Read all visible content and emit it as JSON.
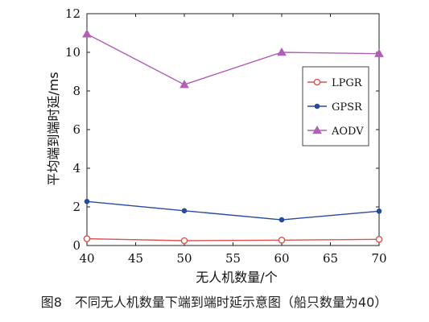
{
  "chart_data": {
    "type": "line",
    "title": "",
    "xlabel": "无人机数量/个",
    "ylabel": "平均端到端时延/ms",
    "x": [
      40,
      50,
      60,
      70
    ],
    "xlim": [
      40,
      70
    ],
    "ylim": [
      0,
      12
    ],
    "xticks": [
      40,
      45,
      50,
      55,
      60,
      65,
      70
    ],
    "yticks": [
      0,
      2,
      4,
      6,
      8,
      10,
      12
    ],
    "grid": false,
    "legend_position": "right",
    "series": [
      {
        "name": "LPGR",
        "values": [
          0.35,
          0.25,
          0.28,
          0.32
        ],
        "color": "#d9534f",
        "marker": "circle-open"
      },
      {
        "name": "GPSR",
        "values": [
          2.28,
          1.8,
          1.33,
          1.78
        ],
        "color": "#2a4b9b",
        "marker": "dot"
      },
      {
        "name": "AODV",
        "values": [
          10.95,
          8.33,
          10.0,
          9.93
        ],
        "color": "#b05fb5",
        "marker": "triangle"
      }
    ]
  },
  "caption": "图8　不同无人机数量下端到端时延示意图（船只数量为40）"
}
